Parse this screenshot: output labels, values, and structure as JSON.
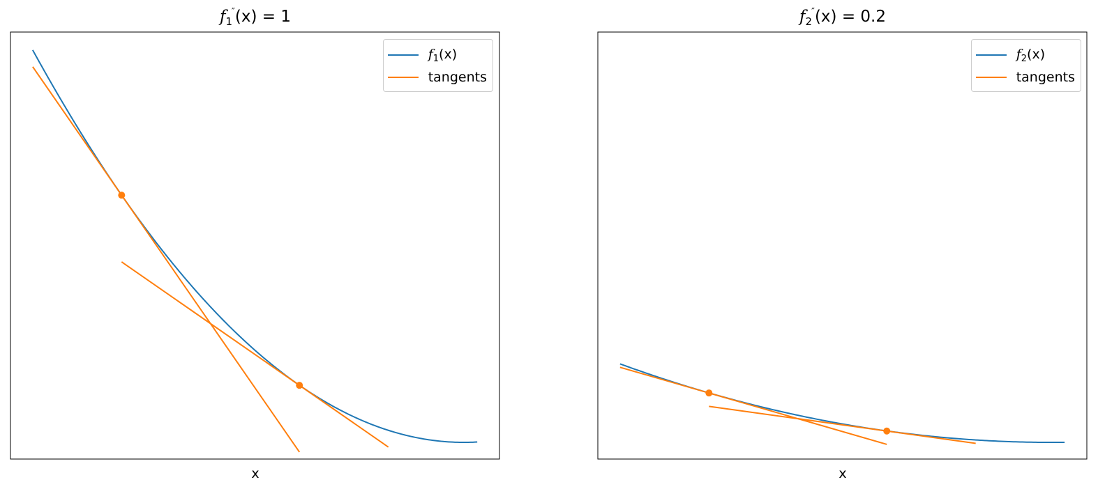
{
  "colors": {
    "curve": "#1f77b4",
    "tangent": "#ff7f0e",
    "frame": "#000000"
  },
  "chart_data": [
    {
      "type": "line",
      "title": {
        "func": "f",
        "sub": "1",
        "prime": "″",
        "rest": "(x) = 1"
      },
      "xlabel": "x",
      "ylabel": "",
      "xlim": [
        -2.6,
        2.9
      ],
      "ylim": [
        -0.5,
        12.3
      ],
      "ticks_visible": false,
      "legend": {
        "placement": "top-right",
        "entries": [
          {
            "func": "f",
            "sub": "1",
            "rest": "(x)"
          },
          {
            "label": "tangents"
          }
        ]
      },
      "curve": {
        "name": "f1(x)",
        "equation": "0.5*(x-2.5)^2",
        "x_range": [
          -2.35,
          2.65
        ]
      },
      "tangents": [
        {
          "point": [
            -1.35,
            7.41
          ],
          "x_range": [
            -2.35,
            0.65
          ],
          "slope": -3.85
        },
        {
          "point": [
            0.65,
            1.71
          ],
          "x_range": [
            -1.35,
            1.65
          ],
          "slope": -1.85
        }
      ]
    },
    {
      "type": "line",
      "title": {
        "func": "f",
        "sub": "2",
        "prime": "″",
        "rest": "(x) = 0.2"
      },
      "xlabel": "x",
      "ylabel": "",
      "xlim": [
        -2.6,
        2.9
      ],
      "ylim": [
        -0.5,
        12.3
      ],
      "ticks_visible": false,
      "legend": {
        "placement": "top-right",
        "entries": [
          {
            "func": "f",
            "sub": "2",
            "rest": "(x)"
          },
          {
            "label": "tangents"
          }
        ]
      },
      "curve": {
        "name": "f2(x)",
        "equation": "0.1*(x-2.5)^2",
        "x_range": [
          -2.35,
          2.65
        ]
      },
      "tangents": [
        {
          "point": [
            -1.35,
            1.48
          ],
          "x_range": [
            -2.35,
            0.65
          ],
          "slope": -0.77
        },
        {
          "point": [
            0.65,
            0.34
          ],
          "x_range": [
            -1.35,
            1.65
          ],
          "slope": -0.37
        }
      ]
    }
  ]
}
